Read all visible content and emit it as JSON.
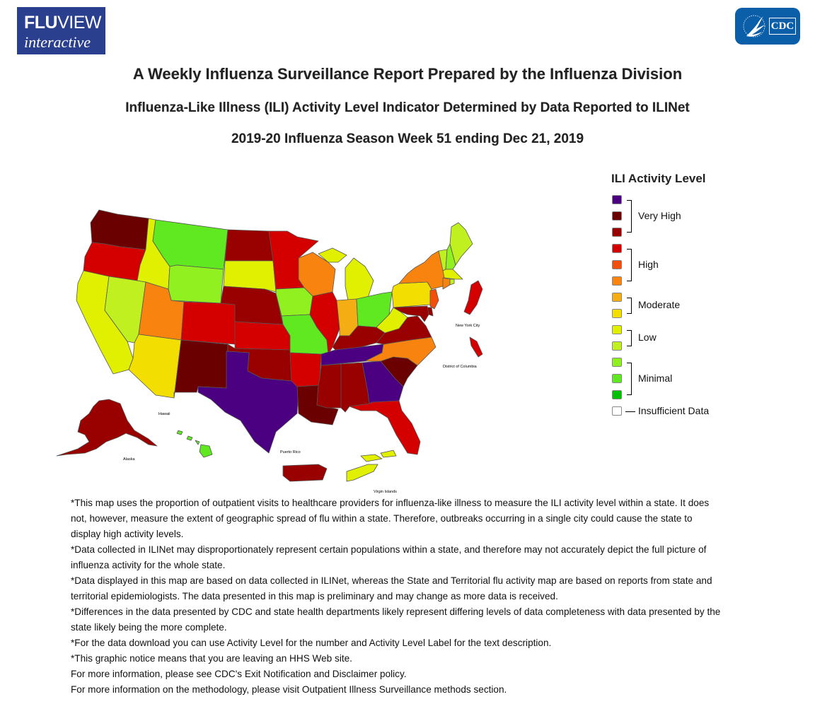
{
  "header": {
    "fluview_logo_top_bold": "FLU",
    "fluview_logo_top_light": "VIEW",
    "fluview_logo_bottom": "interactive",
    "cdc_logo_text": "CDC",
    "title": "A Weekly Influenza Surveillance Report Prepared by the Influenza Division",
    "subtitle": "Influenza-Like Illness (ILI) Activity Level Indicator Determined by Data Reported to ILINet",
    "season_week": "2019-20 Influenza Season Week 51 ending Dec 21, 2019"
  },
  "colors": {
    "level_13": "#4b0082",
    "level_12": "#6b0000",
    "level_11": "#990000",
    "level_10": "#d40000",
    "level_9": "#f24e0c",
    "level_8": "#f8840f",
    "level_7": "#f5ad14",
    "level_6": "#f2de00",
    "level_5": "#e0f000",
    "level_4": "#c0f020",
    "level_3": "#90f020",
    "level_2": "#60e820",
    "level_1": "#00c000",
    "insufficient": "#ffffff",
    "state_border": "#555555"
  },
  "legend": {
    "title": "ILI Activity Level",
    "swatches": [
      "level_13",
      "level_12",
      "level_11",
      "level_10",
      "level_9",
      "level_8",
      "level_7",
      "level_6",
      "level_5",
      "level_4",
      "level_3",
      "level_2",
      "level_1",
      "insufficient"
    ],
    "groups": {
      "very_high": "Very High",
      "high": "High",
      "moderate": "Moderate",
      "low": "Low",
      "minimal": "Minimal",
      "insufficient": "Insufficient Data"
    }
  },
  "map": {
    "labels": {
      "hawaii": "Hawaii",
      "alaska": "Alaska",
      "puerto_rico": "Puerto Rico",
      "virgin_islands": "Virgin Islands",
      "new_york_city": "New York City",
      "district_of_columbia": "District of Columbia"
    },
    "states": {
      "WA": "level_12",
      "OR": "level_10",
      "CA": "level_5",
      "NV": "level_4",
      "ID": "level_5",
      "MT": "level_2",
      "WY": "level_3",
      "UT": "level_8",
      "AZ": "level_6",
      "CO": "level_10",
      "NM": "level_12",
      "ND": "level_11",
      "SD": "level_5",
      "NE": "level_11",
      "KS": "level_10",
      "OK": "level_11",
      "TX": "level_13",
      "MN": "level_10",
      "IA": "level_3",
      "MO": "level_2",
      "AR": "level_10",
      "LA": "level_12",
      "WI": "level_8",
      "IL": "level_10",
      "MI": "level_5",
      "IN": "level_7",
      "OH": "level_2",
      "KY": "level_11",
      "TN": "level_13",
      "MS": "level_11",
      "AL": "level_11",
      "GA": "level_13",
      "FL": "level_10",
      "SC": "level_12",
      "NC": "level_8",
      "VA": "level_11",
      "WV": "level_5",
      "PA": "level_6",
      "NY": "level_8",
      "VT": "level_4",
      "NH": "level_3",
      "ME": "level_4",
      "MA": "level_5",
      "CT": "level_8",
      "RI": "level_4",
      "NJ": "level_9",
      "DE": "level_11",
      "MD": "level_11",
      "AK": "level_11",
      "HI": "level_2",
      "PR": "level_11",
      "VI": "level_5",
      "NYC": "level_10",
      "DC": "level_10"
    }
  },
  "notes": [
    "*This map uses the proportion of outpatient visits to healthcare providers for influenza-like illness to measure the ILI activity level within a state. It does not, however, measure the extent of geographic spread of flu within a state. Therefore, outbreaks occurring in a single city could cause the state to display high activity levels.",
    "*Data collected in ILINet may disproportionately represent certain populations within a state, and therefore may not accurately depict the full picture of influenza activity for the whole state.",
    "*Data displayed in this map are based on data collected in ILINet, whereas the State and Territorial flu activity map are based on reports from state and territorial epidemiologists. The data presented in this map is preliminary and may change as more data is received.",
    "*Differences in the data presented by CDC and state health departments likely represent differing levels of data completeness with data presented by the state likely being the more complete.",
    "*For the data download you can use Activity Level for the number and Activity Level Label for the text description.",
    "*This graphic notice means that you are leaving an HHS Web site.",
    "For more information, please see CDC's Exit Notification and Disclaimer policy.",
    "For more information on the methodology, please visit Outpatient Illness Surveillance methods section."
  ]
}
